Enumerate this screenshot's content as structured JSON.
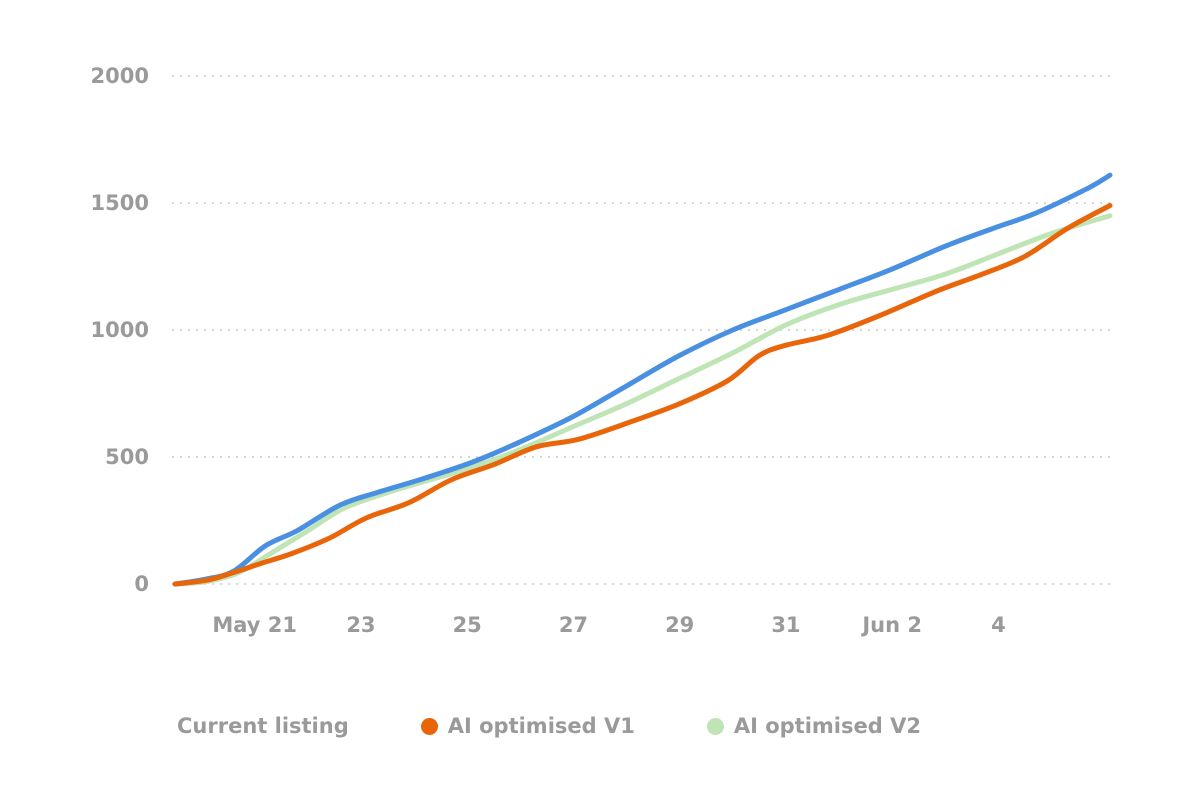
{
  "chart_data": {
    "type": "line",
    "title": "",
    "xlabel": "",
    "ylabel": "",
    "x_ticks": [
      {
        "day": 1.5,
        "label": "May 21"
      },
      {
        "day": 3.5,
        "label": "23"
      },
      {
        "day": 5.5,
        "label": "25"
      },
      {
        "day": 7.5,
        "label": "27"
      },
      {
        "day": 9.5,
        "label": "29"
      },
      {
        "day": 11.5,
        "label": "31"
      },
      {
        "day": 13.5,
        "label": "Jun 2"
      },
      {
        "day": 15.5,
        "label": "4"
      }
    ],
    "y_ticks": [
      {
        "value": 0,
        "label": "0"
      },
      {
        "value": 500,
        "label": "500"
      },
      {
        "value": 1000,
        "label": "1000"
      },
      {
        "value": 1500,
        "label": "1500"
      },
      {
        "value": 2000,
        "label": "2000"
      }
    ],
    "x_range": [
      0,
      17.6
    ],
    "ylim": [
      0,
      2000
    ],
    "grid": "horizontal-dotted",
    "legend_position": "bottom-left",
    "series": [
      {
        "name": "Current listing",
        "color": "#4a90e2",
        "show_marker": false,
        "x": [
          0,
          0.6,
          1.1,
          1.7,
          2.3,
          3.1,
          3.8,
          4.6,
          5.6,
          6.5,
          7.5,
          8.5,
          9.5,
          10.5,
          11.5,
          12.5,
          13.5,
          14.5,
          15.4,
          16.2,
          17.2,
          17.6
        ],
        "y": [
          0,
          20,
          50,
          150,
          210,
          310,
          360,
          410,
          480,
          560,
          660,
          780,
          900,
          1000,
          1080,
          1160,
          1240,
          1330,
          1400,
          1460,
          1560,
          1610
        ]
      },
      {
        "name": "AI optimised V1",
        "color": "#e8650a",
        "show_marker": true,
        "x": [
          0,
          0.6,
          1.1,
          1.6,
          2.2,
          2.9,
          3.6,
          4.4,
          5.2,
          6.0,
          6.8,
          7.6,
          8.6,
          9.5,
          10.4,
          11.0,
          11.5,
          12.3,
          13.3,
          14.3,
          15.2,
          16.0,
          16.8,
          17.6
        ],
        "y": [
          0,
          15,
          45,
          80,
          120,
          180,
          260,
          320,
          410,
          470,
          540,
          570,
          640,
          710,
          800,
          900,
          940,
          980,
          1060,
          1150,
          1220,
          1290,
          1400,
          1490
        ]
      },
      {
        "name": "AI optimised V2",
        "color": "#bfe4b5",
        "show_marker": true,
        "x": [
          0,
          0.6,
          1.2,
          1.8,
          2.5,
          3.2,
          4.0,
          4.8,
          5.6,
          6.5,
          7.5,
          8.5,
          9.5,
          10.5,
          11.5,
          12.5,
          13.5,
          14.5,
          15.5,
          16.5,
          17.6
        ],
        "y": [
          0,
          10,
          45,
          120,
          210,
          300,
          360,
          410,
          460,
          530,
          620,
          710,
          810,
          910,
          1020,
          1100,
          1160,
          1220,
          1300,
          1380,
          1450
        ]
      }
    ]
  }
}
